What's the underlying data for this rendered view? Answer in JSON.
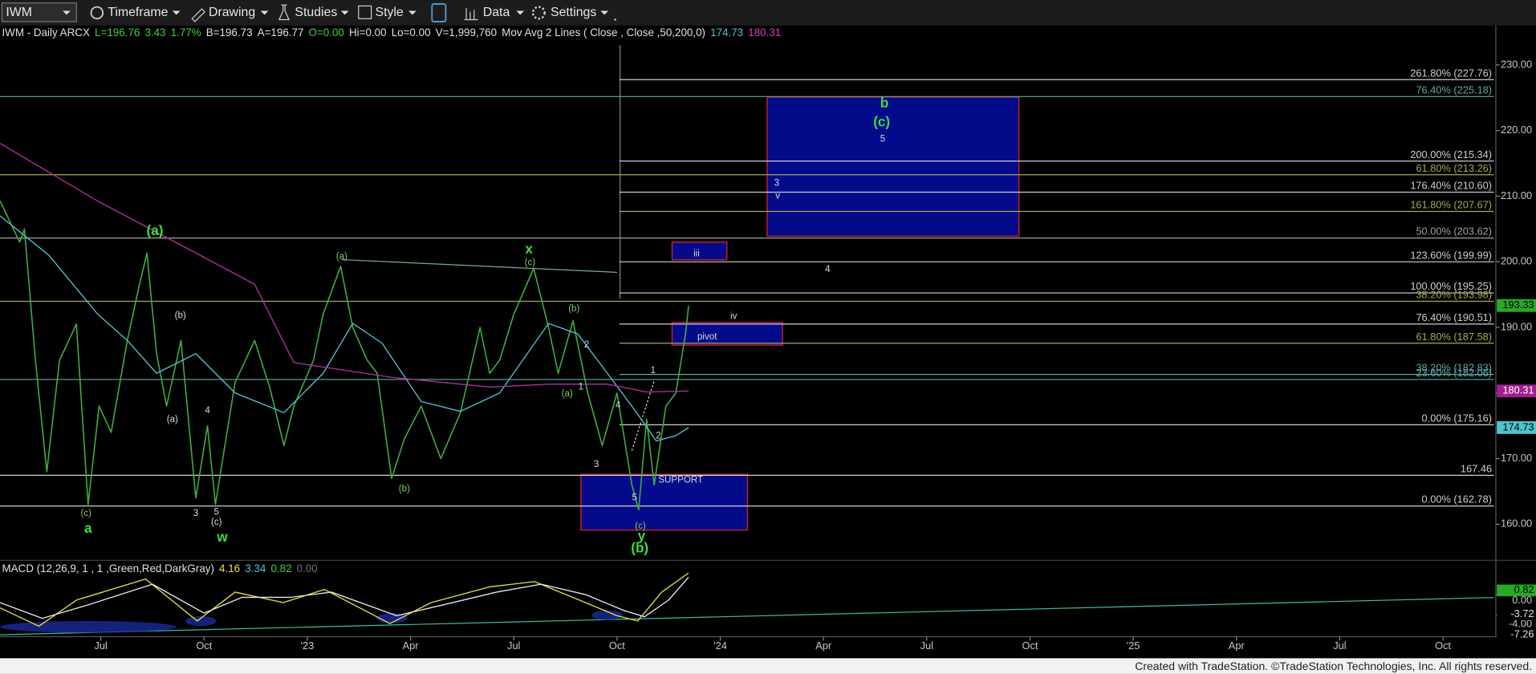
{
  "toolbar": {
    "symbol": "IWM",
    "items": [
      "Timeframe",
      "Drawing",
      "Studies",
      "Style",
      "Data",
      "Settings"
    ]
  },
  "header": [
    {
      "text": "IWM - Daily ARCX",
      "color": "#e0e0e0"
    },
    {
      "text": "L=196.76",
      "color": "#3fcf3f"
    },
    {
      "text": "3.43",
      "color": "#3fcf3f"
    },
    {
      "text": "1.77%",
      "color": "#3fcf3f"
    },
    {
      "text": "B=196.73",
      "color": "#e0e0e0"
    },
    {
      "text": "A=196.77",
      "color": "#e0e0e0"
    },
    {
      "text": "O=0.00",
      "color": "#3fcf3f"
    },
    {
      "text": "Hi=0.00",
      "color": "#e0e0e0"
    },
    {
      "text": "Lo=0.00",
      "color": "#e0e0e0"
    },
    {
      "text": "V=1,999,760",
      "color": "#e0e0e0"
    },
    {
      "text": "Mov Avg 2 Lines ( Close , Close ,50,200,0)",
      "color": "#e0e0e0"
    },
    {
      "text": "174.73",
      "color": "#4fc3d0"
    },
    {
      "text": "180.31",
      "color": "#d040c0"
    }
  ],
  "macd_header": [
    {
      "text": "MACD (12,26,9, 1 , 1 ,Green,Red,DarkGray)",
      "color": "#e0e0e0"
    },
    {
      "text": "4.16",
      "color": "#e8e040"
    },
    {
      "text": "3.34",
      "color": "#4fc3d0"
    },
    {
      "text": "0.82",
      "color": "#3fcf3f"
    },
    {
      "text": "0.00",
      "color": "#707070"
    }
  ],
  "footer": "Created with TradeStation. ©TradeStation Technologies, Inc. All rights reserved.",
  "chart_data": {
    "type": "line",
    "xlim": [
      3.07,
      46.48
    ],
    "xticks": [
      {
        "value": 6,
        "label": "Jul"
      },
      {
        "value": 9,
        "label": "Oct"
      },
      {
        "value": 12,
        "label": "'23"
      },
      {
        "value": 15,
        "label": "Apr"
      },
      {
        "value": 18,
        "label": "Jul"
      },
      {
        "value": 21,
        "label": "Oct"
      },
      {
        "value": 24,
        "label": "'24"
      },
      {
        "value": 27,
        "label": "Apr"
      },
      {
        "value": 30,
        "label": "Jul"
      },
      {
        "value": 33,
        "label": "Oct"
      },
      {
        "value": 36,
        "label": "'25"
      },
      {
        "value": 39,
        "label": "Apr"
      },
      {
        "value": 42,
        "label": "Jul"
      },
      {
        "value": 45,
        "label": "Oct"
      }
    ],
    "ylim": [
      154.5,
      236
    ],
    "yticks": [
      {
        "value": 160,
        "label": "160.00"
      },
      {
        "value": 170,
        "label": "170.00"
      },
      {
        "value": 180,
        "label": "180.00"
      },
      {
        "value": 190,
        "label": "190.00"
      },
      {
        "value": 200,
        "label": "200.00"
      },
      {
        "value": 210,
        "label": "210.00"
      },
      {
        "value": 220,
        "label": "220.00"
      },
      {
        "value": 230,
        "label": "230.00"
      }
    ],
    "series": [
      {
        "color": "#3fae3f",
        "x": [
          3.07,
          3.64,
          3.78,
          4.1,
          4.43,
          4.8,
          5.29,
          5.63,
          5.95,
          6.3,
          6.77,
          7.1,
          7.34,
          7.62,
          7.91,
          8.33,
          8.76,
          9.1,
          9.33,
          9.9,
          10.47,
          10.9,
          11.32,
          11.61,
          12.18,
          12.46,
          12.97,
          13.32,
          13.74,
          14.03,
          14.45,
          14.82,
          15.31,
          15.88,
          16.45,
          17.02,
          17.3,
          17.59,
          18.0,
          18.58,
          19.01,
          19.29,
          19.72,
          20.15,
          20.57,
          21.0,
          21.43,
          21.63,
          21.86,
          22.08,
          22.42,
          22.71,
          22.99,
          23.08
        ],
        "values": [
          209.3,
          203,
          205,
          185,
          168,
          185,
          190.5,
          163,
          178,
          174,
          188,
          196,
          201.3,
          186,
          178,
          188,
          164,
          175,
          163,
          181.6,
          188,
          181,
          172,
          178,
          185,
          192,
          199.3,
          190,
          185,
          183,
          167,
          173,
          178,
          170,
          177,
          190,
          183,
          185,
          192,
          199,
          190,
          183,
          191,
          180,
          172,
          180,
          166,
          162.2,
          176,
          166,
          178,
          180,
          189,
          193.3
        ]
      },
      {
        "color": "#4fc3d0",
        "x": [
          3.07,
          4.49,
          5.91,
          6.77,
          7.62,
          8.76,
          9.9,
          11.32,
          12.46,
          13.32,
          14.17,
          15.31,
          16.45,
          17.59,
          19.01,
          19.86,
          20.72,
          21.57,
          22.14,
          22.71,
          23.08
        ],
        "values": [
          207,
          201,
          192,
          188,
          183,
          186,
          180,
          177,
          183,
          190.6,
          187.6,
          178.7,
          177.2,
          180,
          190.6,
          189,
          183,
          177,
          172.7,
          173.5,
          174.73
        ]
      },
      {
        "color": "#b0309f",
        "x": [
          3.07,
          5.91,
          8.76,
          10.47,
          11.61,
          14.45,
          17.3,
          19.01,
          20.72,
          21.86,
          23.08
        ],
        "values": [
          218.06,
          209.25,
          201.34,
          196.57,
          184.63,
          182.39,
          180.9,
          181.34,
          181.34,
          180.15,
          180.31
        ]
      }
    ],
    "price_tags": [
      {
        "value": 193.33,
        "color": "#27a827",
        "text_color": "#000000"
      },
      {
        "value": 180.31,
        "color": "#a0208f",
        "text_color": "#ffffff"
      },
      {
        "value": 174.73,
        "color": "#4fc3d0",
        "text_color": "#000000"
      }
    ],
    "fib_lines": [
      {
        "value": 227.76,
        "label": "261.80% (227.76)",
        "color": "#cfcfcf",
        "start": 21.07
      },
      {
        "value": 225.18,
        "label": "76.40% (225.18)",
        "color": "#5fa8a8",
        "start": 3.07
      },
      {
        "value": 215.34,
        "label": "200.00% (215.34)",
        "color": "#cfcfcf",
        "start": 21.07
      },
      {
        "value": 213.26,
        "label": "61.80% (213.26)",
        "color": "#a9a94e",
        "start": 3.07
      },
      {
        "value": 210.6,
        "label": "176.40% (210.60)",
        "color": "#cfcfcf",
        "start": 21.07
      },
      {
        "value": 207.67,
        "label": "161.80% (207.67)",
        "color": "#a9a94e",
        "start": 21.07
      },
      {
        "value": 203.62,
        "label": "50.00% (203.62)",
        "color": "#a0a0a0",
        "start": 3.07
      },
      {
        "value": 199.99,
        "label": "123.60% (199.99)",
        "color": "#cfcfcf",
        "start": 21.07
      },
      {
        "value": 195.25,
        "label": "100.00% (195.25)",
        "color": "#cfcfcf",
        "start": 21.07
      },
      {
        "value": 193.98,
        "label": "38.20% (193.98)",
        "color": "#a9a94e",
        "start": 3.07
      },
      {
        "value": 190.51,
        "label": "76.40% (190.51)",
        "color": "#cfcfcf",
        "start": 21.07
      },
      {
        "value": 187.58,
        "label": "61.80% (187.58)",
        "color": "#a9a94e",
        "start": 21.07
      },
      {
        "value": 182.83,
        "label": "38.20% (182.83)",
        "color": "#5fa8a8",
        "start": 21.07
      },
      {
        "value": 182.06,
        "label": "23.60% (182.06)",
        "color": "#5fa8a8",
        "start": 3.07
      },
      {
        "value": 175.16,
        "label": "0.00% (175.16)",
        "color": "#cfcfcf",
        "start": 21.07
      },
      {
        "value": 167.46,
        "label": "167.46",
        "color": "#cfcfcf",
        "start": 3.07
      },
      {
        "value": 162.78,
        "label": "0.00% (162.78)",
        "color": "#cfcfcf",
        "start": 3.07
      }
    ],
    "zones": [
      {
        "x": [
          25.36,
          32.68
        ],
        "y": [
          203.9,
          225.1
        ]
      },
      {
        "x": [
          22.6,
          24.19
        ],
        "y": [
          200.3,
          203.0
        ]
      },
      {
        "x": [
          22.6,
          25.81
        ],
        "y": [
          187.3,
          190.75
        ]
      },
      {
        "x": [
          19.95,
          24.79
        ],
        "y": [
          159.1,
          167.6
        ]
      }
    ],
    "zone_style": {
      "fill": "#030b8a",
      "stroke": "#c0202a"
    },
    "annotations": [
      {
        "text": "(a)",
        "x": 7.57,
        "y": 204.63,
        "color": "#3fdc3f",
        "size": "large"
      },
      {
        "text": "a",
        "x": 5.63,
        "y": 159.25,
        "color": "#3fdc3f",
        "size": "large"
      },
      {
        "text": "w",
        "x": 9.53,
        "y": 157.91,
        "color": "#3fdc3f",
        "size": "large"
      },
      {
        "text": "x",
        "x": 18.44,
        "y": 201.79,
        "color": "#3fdc3f",
        "size": "large"
      },
      {
        "text": "y",
        "x": 21.71,
        "y": 158.06,
        "color": "#3fdc3f",
        "size": "large"
      },
      {
        "text": "(b)",
        "x": 21.66,
        "y": 156.27,
        "color": "#3fdc3f",
        "size": "large"
      },
      {
        "text": "b",
        "x": 28.77,
        "y": 224.03,
        "color": "#3fdc3f",
        "size": "large"
      },
      {
        "text": "(c)",
        "x": 28.69,
        "y": 221.19,
        "color": "#3fdc3f",
        "size": "large"
      },
      {
        "text": "(c)",
        "x": 5.57,
        "y": 161.64,
        "color": "#7fcf5c",
        "size": "small"
      },
      {
        "text": "(a)",
        "x": 13.0,
        "y": 200.75,
        "color": "#7fcf5c",
        "size": "small"
      },
      {
        "text": "(c)",
        "x": 18.47,
        "y": 199.85,
        "color": "#7fcf5c",
        "size": "small"
      },
      {
        "text": "(b)",
        "x": 19.75,
        "y": 192.84,
        "color": "#7fcf5c",
        "size": "small"
      },
      {
        "text": "(a)",
        "x": 19.55,
        "y": 179.85,
        "color": "#7fcf5c",
        "size": "small"
      },
      {
        "text": "(b)",
        "x": 14.82,
        "y": 165.37,
        "color": "#7fcf5c",
        "size": "small"
      },
      {
        "text": "(c)",
        "x": 21.68,
        "y": 159.7,
        "color": "#7fcf5c",
        "size": "small"
      },
      {
        "text": "(b)",
        "x": 8.31,
        "y": 191.79,
        "color": "#d8d8d8",
        "size": "small"
      },
      {
        "text": "(a)",
        "x": 8.08,
        "y": 175.97,
        "color": "#d8d8d8",
        "size": "small"
      },
      {
        "text": "4",
        "x": 9.1,
        "y": 177.31,
        "color": "#d8d8d8",
        "size": "small"
      },
      {
        "text": "3",
        "x": 8.76,
        "y": 161.64,
        "color": "#d8d8d8",
        "size": "small"
      },
      {
        "text": "5",
        "x": 9.36,
        "y": 161.79,
        "color": "#d8d8d8",
        "size": "small"
      },
      {
        "text": "(c)",
        "x": 9.36,
        "y": 160.3,
        "color": "#d8d8d8",
        "size": "small"
      },
      {
        "text": "2",
        "x": 20.12,
        "y": 187.31,
        "color": "#d8d8d8",
        "size": "small"
      },
      {
        "text": "1",
        "x": 19.95,
        "y": 180.9,
        "color": "#d8d8d8",
        "size": "small"
      },
      {
        "text": "4",
        "x": 21.03,
        "y": 178.06,
        "color": "#d8d8d8",
        "size": "small"
      },
      {
        "text": "3",
        "x": 20.4,
        "y": 169.1,
        "color": "#d8d8d8",
        "size": "small"
      },
      {
        "text": "5",
        "x": 21.51,
        "y": 164.03,
        "color": "#d8d8d8",
        "size": "small"
      },
      {
        "text": "1",
        "x": 22.05,
        "y": 183.43,
        "color": "#d8d8d8",
        "size": "small"
      },
      {
        "text": "2",
        "x": 22.2,
        "y": 173.43,
        "color": "#d8d8d8",
        "size": "small"
      },
      {
        "text": "5",
        "x": 28.72,
        "y": 218.66,
        "color": "#d8d8d8",
        "size": "small"
      },
      {
        "text": "3",
        "x": 25.64,
        "y": 211.94,
        "color": "#d8d8d8",
        "size": "small"
      },
      {
        "text": "v",
        "x": 25.67,
        "y": 210.0,
        "color": "#d8d8d8",
        "size": "small"
      },
      {
        "text": "4",
        "x": 27.12,
        "y": 198.81,
        "color": "#d8d8d8",
        "size": "small"
      },
      {
        "text": "iii",
        "x": 23.31,
        "y": 201.19,
        "color": "#d8d8d8",
        "size": "small"
      },
      {
        "text": "iv",
        "x": 24.39,
        "y": 191.64,
        "color": "#d8d8d8",
        "size": "small"
      },
      {
        "text": "pivot",
        "x": 23.62,
        "y": 188.51,
        "color": "#d8d8d8",
        "size": "small"
      },
      {
        "text": "SUPPORT",
        "x": 22.85,
        "y": 166.72,
        "color": "#d8d8d8",
        "size": "small"
      }
    ],
    "macd": {
      "ylim": [
        -8,
        6
      ],
      "yticks": [
        {
          "value": 0,
          "label": "0.00"
        },
        {
          "value": -4,
          "label": "-4.00"
        }
      ],
      "series": [
        {
          "color": "#e8e040",
          "x": [
            3.07,
            4.2,
            5.3,
            7.3,
            8.8,
            9.9,
            11.3,
            12.5,
            14.4,
            15.6,
            17.3,
            18.6,
            19.9,
            21.0,
            21.6,
            22.3,
            23.08
          ],
          "values": [
            -2.5,
            -6,
            -1,
            3,
            -5,
            0.5,
            -1.5,
            1,
            -5.5,
            -1.5,
            1.5,
            2.5,
            -1,
            -4,
            -5,
            0.5,
            4.16
          ]
        },
        {
          "color": "#e6e6e6",
          "x": [
            3.07,
            4.3,
            5.6,
            7.5,
            9.0,
            10.1,
            11.5,
            12.7,
            14.6,
            15.9,
            17.5,
            18.8,
            20.1,
            21.2,
            21.8,
            22.5,
            23.08
          ],
          "values": [
            -1.5,
            -4.5,
            -2,
            2,
            -3.5,
            -0.5,
            -0.5,
            0.5,
            -4,
            -2,
            0.5,
            2,
            0,
            -3,
            -4.2,
            -1,
            3.34
          ]
        }
      ],
      "tags": [
        {
          "value": 0.82,
          "color": "#27a827",
          "text_color": "#000000"
        },
        {
          "value": -3.72,
          "color": "#000000",
          "text_color": "#e0e0e0"
        },
        {
          "value": -7.26,
          "color": "#000000",
          "text_color": "#e0e0e0"
        }
      ]
    }
  }
}
